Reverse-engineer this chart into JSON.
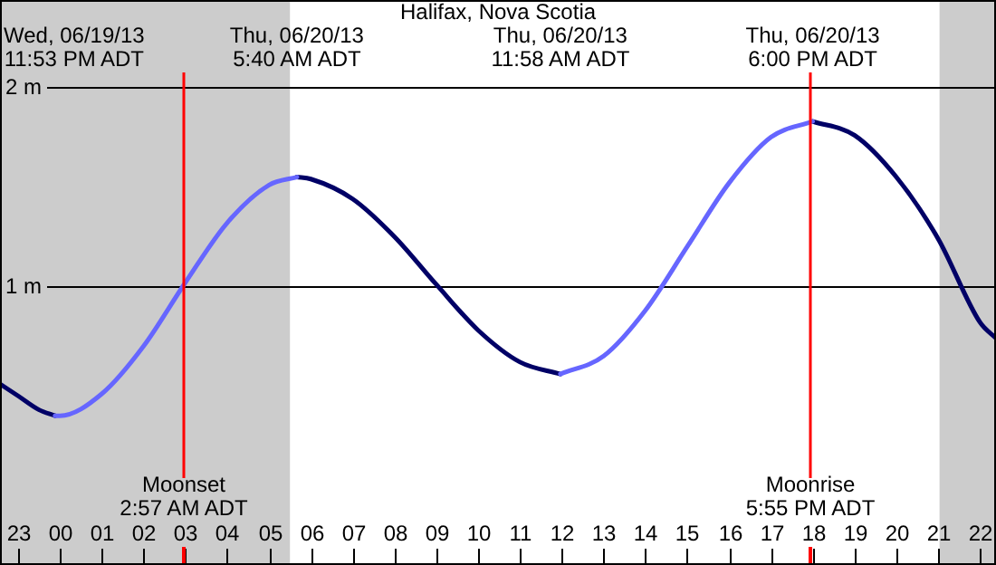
{
  "chart_data": {
    "type": "line",
    "title": "Halifax, Nova Scotia",
    "xlim": [
      "--06-19T22:34",
      "--06-20T22:23"
    ],
    "ylim": [
      -0.4,
      2.44
    ],
    "xticks": [
      {
        "value": "--06-19T23:00",
        "label": "23"
      },
      {
        "value": "--06-20T00:00",
        "label": "00"
      },
      {
        "value": "--06-20T01:00",
        "label": "01"
      },
      {
        "value": "--06-20T02:00",
        "label": "02"
      },
      {
        "value": "--06-20T03:00",
        "label": "03"
      },
      {
        "value": "--06-20T04:00",
        "label": "04"
      },
      {
        "value": "--06-20T05:00",
        "label": "05"
      },
      {
        "value": "--06-20T06:00",
        "label": "06"
      },
      {
        "value": "--06-20T07:00",
        "label": "07"
      },
      {
        "value": "--06-20T08:00",
        "label": "08"
      },
      {
        "value": "--06-20T09:00",
        "label": "09"
      },
      {
        "value": "--06-20T10:00",
        "label": "10"
      },
      {
        "value": "--06-20T11:00",
        "label": "11"
      },
      {
        "value": "--06-20T12:00",
        "label": "12"
      },
      {
        "value": "--06-20T13:00",
        "label": "13"
      },
      {
        "value": "--06-20T14:00",
        "label": "14"
      },
      {
        "value": "--06-20T15:00",
        "label": "15"
      },
      {
        "value": "--06-20T16:00",
        "label": "16"
      },
      {
        "value": "--06-20T17:00",
        "label": "17"
      },
      {
        "value": "--06-20T18:00",
        "label": "18"
      },
      {
        "value": "--06-20T19:00",
        "label": "19"
      },
      {
        "value": "--06-20T20:00",
        "label": "20"
      },
      {
        "value": "--06-20T21:00",
        "label": "21"
      },
      {
        "value": "--06-20T22:00",
        "label": "22"
      }
    ],
    "yticks": [
      {
        "value": 1,
        "label": "1 m"
      },
      {
        "value": 2,
        "label": "2 m"
      }
    ],
    "grid": "y",
    "legend": false,
    "series": [
      {
        "color": "#6666ff",
        "x": [
          "--06-19T23:53",
          "--06-20T00:00",
          "--06-20T01:00",
          "--06-20T02:00",
          "--06-20T03:00",
          "--06-20T04:00",
          "--06-20T05:00",
          "--06-20T05:40",
          "--06-20T06:00",
          "--06-20T11:58",
          "--06-20T13:00",
          "--06-20T14:00",
          "--06-20T15:00",
          "--06-20T16:00",
          "--06-20T17:00",
          "--06-20T18:00"
        ],
        "values": [
          0.35,
          0.35,
          0.46,
          0.7,
          1.02,
          1.32,
          1.51,
          1.55,
          null,
          0.56,
          0.65,
          0.88,
          1.2,
          1.52,
          1.75,
          1.83
        ]
      },
      {
        "color": "#000066",
        "x": [
          "--06-19T22:34",
          "--06-19T23:00",
          "--06-19T23:30",
          "--06-19T23:53",
          "--06-20T00:00",
          "--06-20T05:40",
          "--06-20T06:00",
          "--06-20T07:00",
          "--06-20T08:00",
          "--06-20T09:00",
          "--06-20T10:00",
          "--06-20T11:00",
          "--06-20T11:58",
          "--06-20T12:00",
          "--06-20T18:00",
          "--06-20T19:00",
          "--06-20T20:00",
          "--06-20T21:00",
          "--06-20T22:00",
          "--06-20T22:23"
        ],
        "values": [
          0.51,
          0.45,
          0.38,
          0.35,
          null,
          1.55,
          1.54,
          1.44,
          1.25,
          1.01,
          0.78,
          0.62,
          0.56,
          null,
          1.83,
          1.76,
          1.55,
          1.24,
          0.82,
          0.74
        ]
      }
    ],
    "bands": [
      {
        "axis": "x",
        "from": "--06-19T22:34",
        "to": "--06-20T05:30",
        "color": "#cccccc"
      },
      {
        "axis": "x",
        "from": "--06-20T21:02",
        "to": "--06-20T22:23",
        "color": "#cccccc"
      }
    ],
    "ref_lines": [
      {
        "axis": "x",
        "value": "--06-20T02:57",
        "label": "Moonset\n2:57 AM ADT",
        "color": "#ff0000"
      },
      {
        "axis": "x",
        "value": "--06-20T17:55",
        "label": "Moonrise\n5:55 PM ADT",
        "color": "#ff0000"
      }
    ],
    "annotations": [
      "Wed, 06/19/13\n11:53 PM ADT",
      "Thu, 06/20/13\n5:40 AM ADT",
      "Thu, 06/20/13\n11:58 AM ADT",
      "Thu, 06/20/13\n6:00 PM ADT"
    ]
  }
}
